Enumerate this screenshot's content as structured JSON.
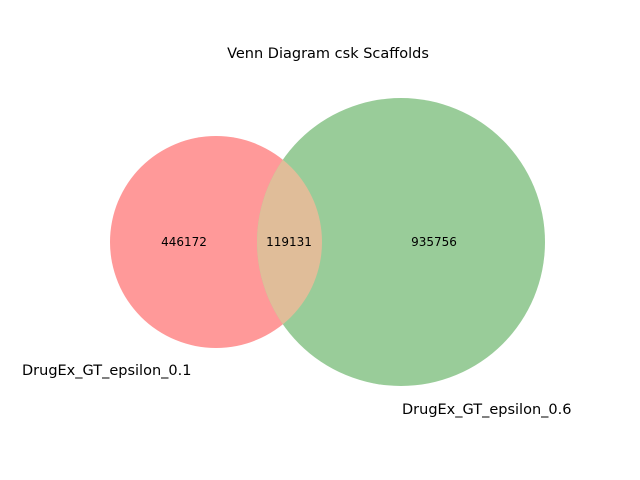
{
  "title": "Venn Diagram csk Scaffolds",
  "colors": {
    "set_a": "#ff9999",
    "set_b": "#99cc99",
    "intersection": "#e0bd99"
  },
  "chart_data": {
    "type": "venn",
    "title": "Venn Diagram csk Scaffolds",
    "sets": [
      {
        "name": "DrugEx_GT_epsilon_0.1",
        "only_count": 446172
      },
      {
        "name": "DrugEx_GT_epsilon_0.6",
        "only_count": 935756
      }
    ],
    "intersection_count": 119131
  },
  "labels": {
    "set_a_only": "446172",
    "intersection": "119131",
    "set_b_only": "935756",
    "set_a_name": "DrugEx_GT_epsilon_0.1",
    "set_b_name": "DrugEx_GT_epsilon_0.6"
  }
}
